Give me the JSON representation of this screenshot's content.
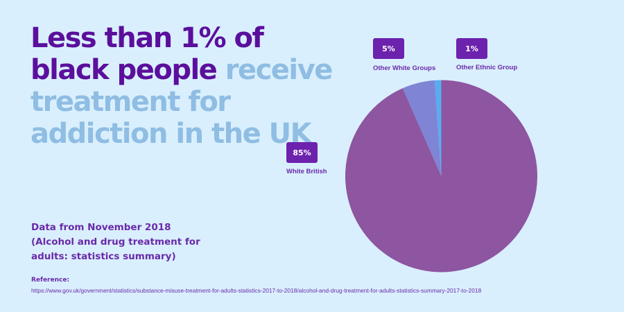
{
  "title": {
    "dark": "Less than 1% of black people",
    "light": "receive treatment for addiction in the UK"
  },
  "source_note": "Data from  November 2018 (Alcohol and drug treatment for adults: statistics summary)",
  "reference": {
    "label": "Reference:",
    "url": "https://www.gov.uk/government/statistics/substance-misuse-treatment-for-adults-statistics-2017-to-2018/alcohol-and-drug-treatment-for-adults-statistics-summary-2017-to-2018"
  },
  "chart_data": {
    "type": "pie",
    "slices": [
      {
        "label": "White British",
        "value": 85,
        "display": "85%",
        "color": "#8e55a0"
      },
      {
        "label": "Other White Groups",
        "value": 5,
        "display": "5%",
        "color": "#7f84d4"
      },
      {
        "label": "Other Ethnic Group",
        "value": 1,
        "display": "1%",
        "color": "#5aacf0"
      }
    ],
    "start": "top",
    "direction": "clockwise"
  },
  "colors": {
    "background": "#d9effd",
    "title_dark": "#5b0f9c",
    "title_light": "#8fbde3",
    "badge": "#6c22ad"
  }
}
